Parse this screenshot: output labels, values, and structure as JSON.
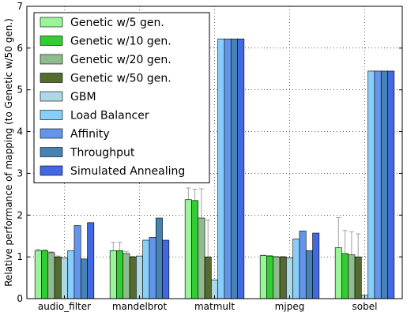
{
  "chart_data": {
    "type": "bar",
    "ylabel": "Relative performance of mapping (to Genetic w/50 gen.)",
    "ylim": [
      0,
      7
    ],
    "yticks": [
      0,
      1,
      2,
      3,
      4,
      5,
      6,
      7
    ],
    "grid": true,
    "legend_position": "top-left",
    "categories": [
      "audio_filter",
      "mandelbrot",
      "matmult",
      "mjpeg",
      "sobel"
    ],
    "series": [
      {
        "name": "Genetic w/5 gen.",
        "color": "#98f598",
        "values": [
          1.15,
          1.15,
          2.37,
          1.03,
          1.22
        ],
        "errors": [
          0.03,
          0.2,
          0.28,
          0.01,
          0.72
        ]
      },
      {
        "name": "Genetic w/10 gen.",
        "color": "#32cd32",
        "values": [
          1.15,
          1.15,
          2.35,
          1.02,
          1.08
        ],
        "errors": [
          0.02,
          0.2,
          0.27,
          0.01,
          0.55
        ]
      },
      {
        "name": "Genetic w/20 gen.",
        "color": "#8fbc8f",
        "values": [
          1.1,
          1.08,
          1.93,
          1.0,
          1.05
        ],
        "errors": [
          0.02,
          0.05,
          0.7,
          0.01,
          0.55
        ]
      },
      {
        "name": "Genetic w/50 gen.",
        "color": "#556b2f",
        "values": [
          1.0,
          1.0,
          1.0,
          1.0,
          1.0
        ],
        "errors": [
          0.02,
          0.01,
          0.88,
          0.01,
          0.55
        ]
      },
      {
        "name": "GBM",
        "color": "#add8e6",
        "values": [
          0.97,
          1.02,
          0.45,
          0.98,
          0.08
        ],
        "errors": [
          0,
          0,
          0,
          0,
          0
        ]
      },
      {
        "name": "Load Balancer",
        "color": "#87cefa",
        "values": [
          1.15,
          1.4,
          6.22,
          1.43,
          5.45
        ],
        "errors": [
          0,
          0,
          0,
          0,
          0
        ]
      },
      {
        "name": "Affinity",
        "color": "#6495ed",
        "values": [
          1.75,
          1.47,
          6.22,
          1.62,
          5.45
        ],
        "errors": [
          0,
          0,
          0,
          0,
          0
        ]
      },
      {
        "name": "Throughput",
        "color": "#4682b4",
        "values": [
          0.95,
          1.93,
          6.22,
          1.15,
          5.45
        ],
        "errors": [
          0,
          0,
          0,
          0,
          0
        ]
      },
      {
        "name": "Simulated Annealing",
        "color": "#4169e1",
        "values": [
          1.82,
          1.4,
          6.22,
          1.57,
          5.45
        ],
        "errors": [
          0,
          0,
          0,
          0,
          0
        ]
      }
    ]
  }
}
